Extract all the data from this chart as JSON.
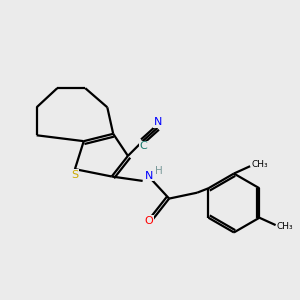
{
  "bg_color": "#ebebeb",
  "atom_colors": {
    "C": "#1a7a6e",
    "N": "#0000ff",
    "S": "#ccaa00",
    "O": "#ff0000",
    "H": "#7a9a9a"
  },
  "lw": 1.6
}
